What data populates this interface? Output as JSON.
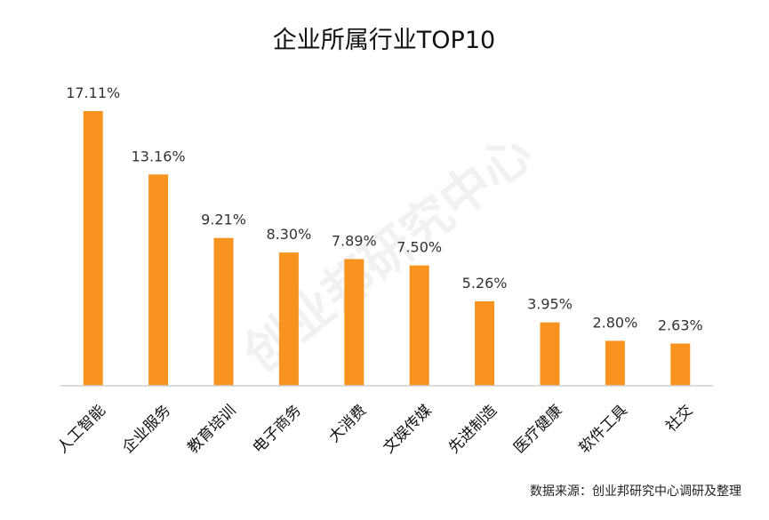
{
  "chart_data": {
    "type": "bar",
    "title": "企业所属行业TOP10",
    "categories": [
      "人工智能",
      "企业服务",
      "教育培训",
      "电子商务",
      "大消费",
      "文娱传媒",
      "先进制造",
      "医疗健康",
      "软件工具",
      "社交"
    ],
    "values": [
      17.11,
      13.16,
      9.21,
      8.3,
      7.89,
      7.5,
      5.26,
      3.95,
      2.8,
      2.63
    ],
    "value_labels": [
      "17.11%",
      "13.16%",
      "9.21%",
      "8.30%",
      "7.89%",
      "7.50%",
      "5.26%",
      "3.95%",
      "2.80%",
      "2.63%"
    ],
    "ylim": [
      0,
      17.11
    ],
    "xlabel": "",
    "ylabel": "",
    "grid": false,
    "bar_color": "#f7931e"
  },
  "source": "数据来源：创业邦研究中心调研及整理",
  "watermark": "创业邦研究中心"
}
